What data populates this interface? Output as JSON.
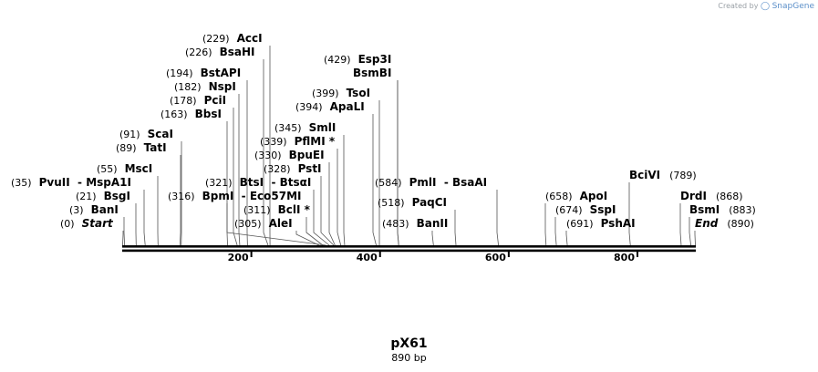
{
  "credit": {
    "prefix": "Created by",
    "brand": "SnapGene"
  },
  "map": {
    "name": "pX61",
    "size_label": "890 bp",
    "length_bp": 890
  },
  "ticks": [
    "200",
    "400",
    "600",
    "800"
  ],
  "ticks_bp": [
    200,
    400,
    600,
    800
  ],
  "sites": [
    {
      "pos": "(0)",
      "name": "Start",
      "bp": 0,
      "italic": true
    },
    {
      "pos": "(3)",
      "name": "BanI",
      "bp": 3
    },
    {
      "pos": "(21)",
      "name": "BsgI",
      "bp": 21
    },
    {
      "pos": "(35)",
      "name": "PvuII  - MspA1I",
      "bp": 35
    },
    {
      "pos": "(55)",
      "name": "MscI",
      "bp": 55
    },
    {
      "pos": "(89)",
      "name": "TatI",
      "bp": 89
    },
    {
      "pos": "(91)",
      "name": "ScaI",
      "bp": 91
    },
    {
      "pos": "(163)",
      "name": "BbsI",
      "bp": 163
    },
    {
      "pos": "(178)",
      "name": "PciI",
      "bp": 178
    },
    {
      "pos": "(182)",
      "name": "NspI",
      "bp": 182
    },
    {
      "pos": "(194)",
      "name": "BstAPI",
      "bp": 194
    },
    {
      "pos": "(226)",
      "name": "BsaHI",
      "bp": 226
    },
    {
      "pos": "(229)",
      "name": "AccI",
      "bp": 229
    },
    {
      "pos": "(316)",
      "name": "BpmI  - Eco57MI",
      "bp": 316
    },
    {
      "pos": "(321)",
      "name": "BtsI  - BtsαI",
      "bp": 321
    },
    {
      "pos": "(305)",
      "name": "AleI",
      "bp": 305
    },
    {
      "pos": "(311)",
      "name": "BclI *",
      "bp": 311
    },
    {
      "pos": "(328)",
      "name": "PstI",
      "bp": 328
    },
    {
      "pos": "(330)",
      "name": "BpuEI",
      "bp": 330
    },
    {
      "pos": "(339)",
      "name": "PflMI *",
      "bp": 339
    },
    {
      "pos": "(345)",
      "name": "SmlI",
      "bp": 345
    },
    {
      "pos": "(394)",
      "name": "ApaLI",
      "bp": 394
    },
    {
      "pos": "(399)",
      "name": "TsoI",
      "bp": 399
    },
    {
      "pos": "(429)",
      "name": "Esp3I",
      "bp": 429
    },
    {
      "pos": "",
      "name": "BsmBI",
      "bp": 429
    },
    {
      "pos": "(483)",
      "name": "BanII",
      "bp": 483
    },
    {
      "pos": "(518)",
      "name": "PaqCI",
      "bp": 518
    },
    {
      "pos": "(584)",
      "name": "PmlI  - BsaAI",
      "bp": 584
    },
    {
      "pos": "(658)",
      "name": "ApoI",
      "bp": 658
    },
    {
      "pos": "(674)",
      "name": "SspI",
      "bp": 674
    },
    {
      "pos": "(691)",
      "name": "PshAI",
      "bp": 691
    },
    {
      "pos": "(789)",
      "name": "BciVI",
      "bp": 789
    },
    {
      "pos": "(868)",
      "name": "DrdI",
      "bp": 868
    },
    {
      "pos": "(883)",
      "name": "BsmI",
      "bp": 883
    },
    {
      "pos": "(890)",
      "name": "End",
      "bp": 890,
      "italic": true
    }
  ]
}
